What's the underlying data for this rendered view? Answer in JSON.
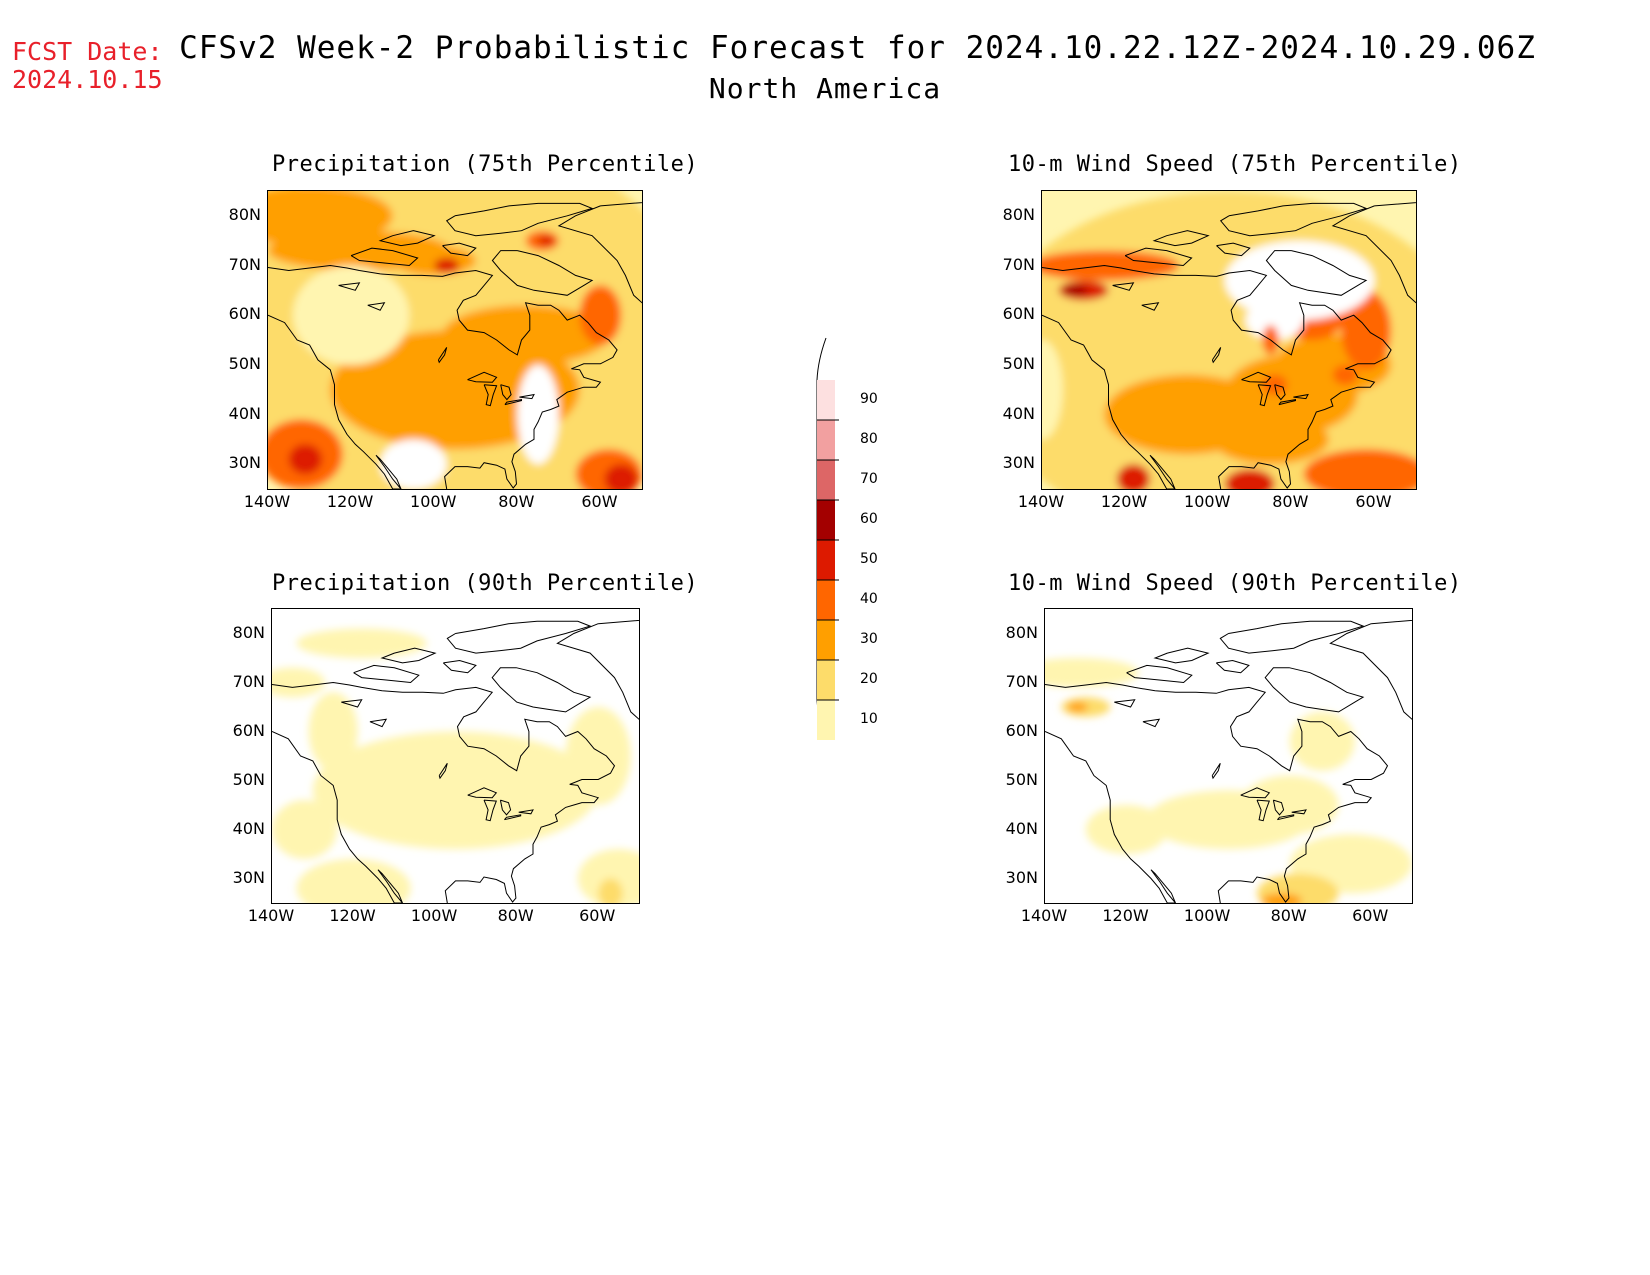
{
  "header": {
    "fcst_label": "FCST Date:",
    "fcst_date": "2024.10.15",
    "title_line1": "CFSv2 Week-2 Probabilistic Forecast for 2024.10.22.12Z-2024.10.29.06Z",
    "title_line2": "North America"
  },
  "panels": [
    {
      "title": "Precipitation (75th Percentile)"
    },
    {
      "title": "10-m Wind Speed (75th Percentile)"
    },
    {
      "title": "Precipitation (90th Percentile)"
    },
    {
      "title": "10-m Wind Speed (90th Percentile)"
    }
  ],
  "axes": {
    "lat_labels": [
      "80N",
      "70N",
      "60N",
      "50N",
      "40N",
      "30N"
    ],
    "lon_labels": [
      "140W",
      "120W",
      "100W",
      "80W",
      "60W"
    ]
  },
  "colorbar": {
    "labels": [
      "90",
      "80",
      "70",
      "60",
      "50",
      "40",
      "30",
      "20",
      "10"
    ],
    "colors": [
      "#fde0e0",
      "#f2a0a0",
      "#dd6666",
      "#a30000",
      "#dd1a00",
      "#ff6600",
      "#ff9f00",
      "#fddc6a",
      "#fff5b0"
    ]
  }
}
